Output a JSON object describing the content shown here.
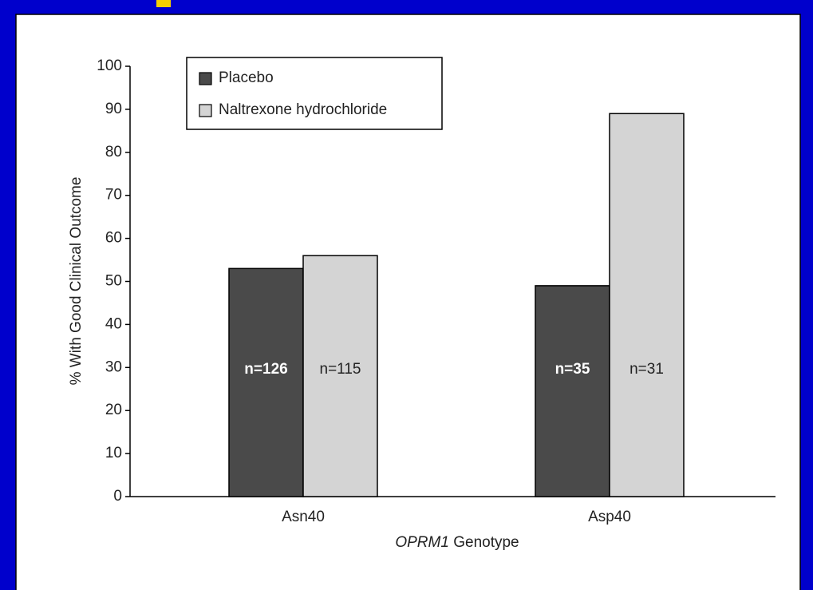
{
  "chart_data": {
    "type": "bar",
    "ylabel": "% With Good Clinical Outcome",
    "xlabel": {
      "gene": "OPRM1",
      "text": "Genotype"
    },
    "categories": [
      "Asn40",
      "Asp40"
    ],
    "series": [
      {
        "name": "Placebo",
        "color": "#4a4a4a",
        "values": [
          53,
          49
        ],
        "labels": [
          "n=126",
          "n=35"
        ]
      },
      {
        "name": "Naltrexone hydrochloride",
        "color": "#d4d4d4",
        "values": [
          56,
          89
        ],
        "labels": [
          "n=115",
          "n=31"
        ]
      }
    ],
    "ylim": [
      0,
      100
    ],
    "yticks": [
      0,
      10,
      20,
      30,
      40,
      50,
      60,
      70,
      80,
      90,
      100
    ],
    "legend": "upper left"
  }
}
